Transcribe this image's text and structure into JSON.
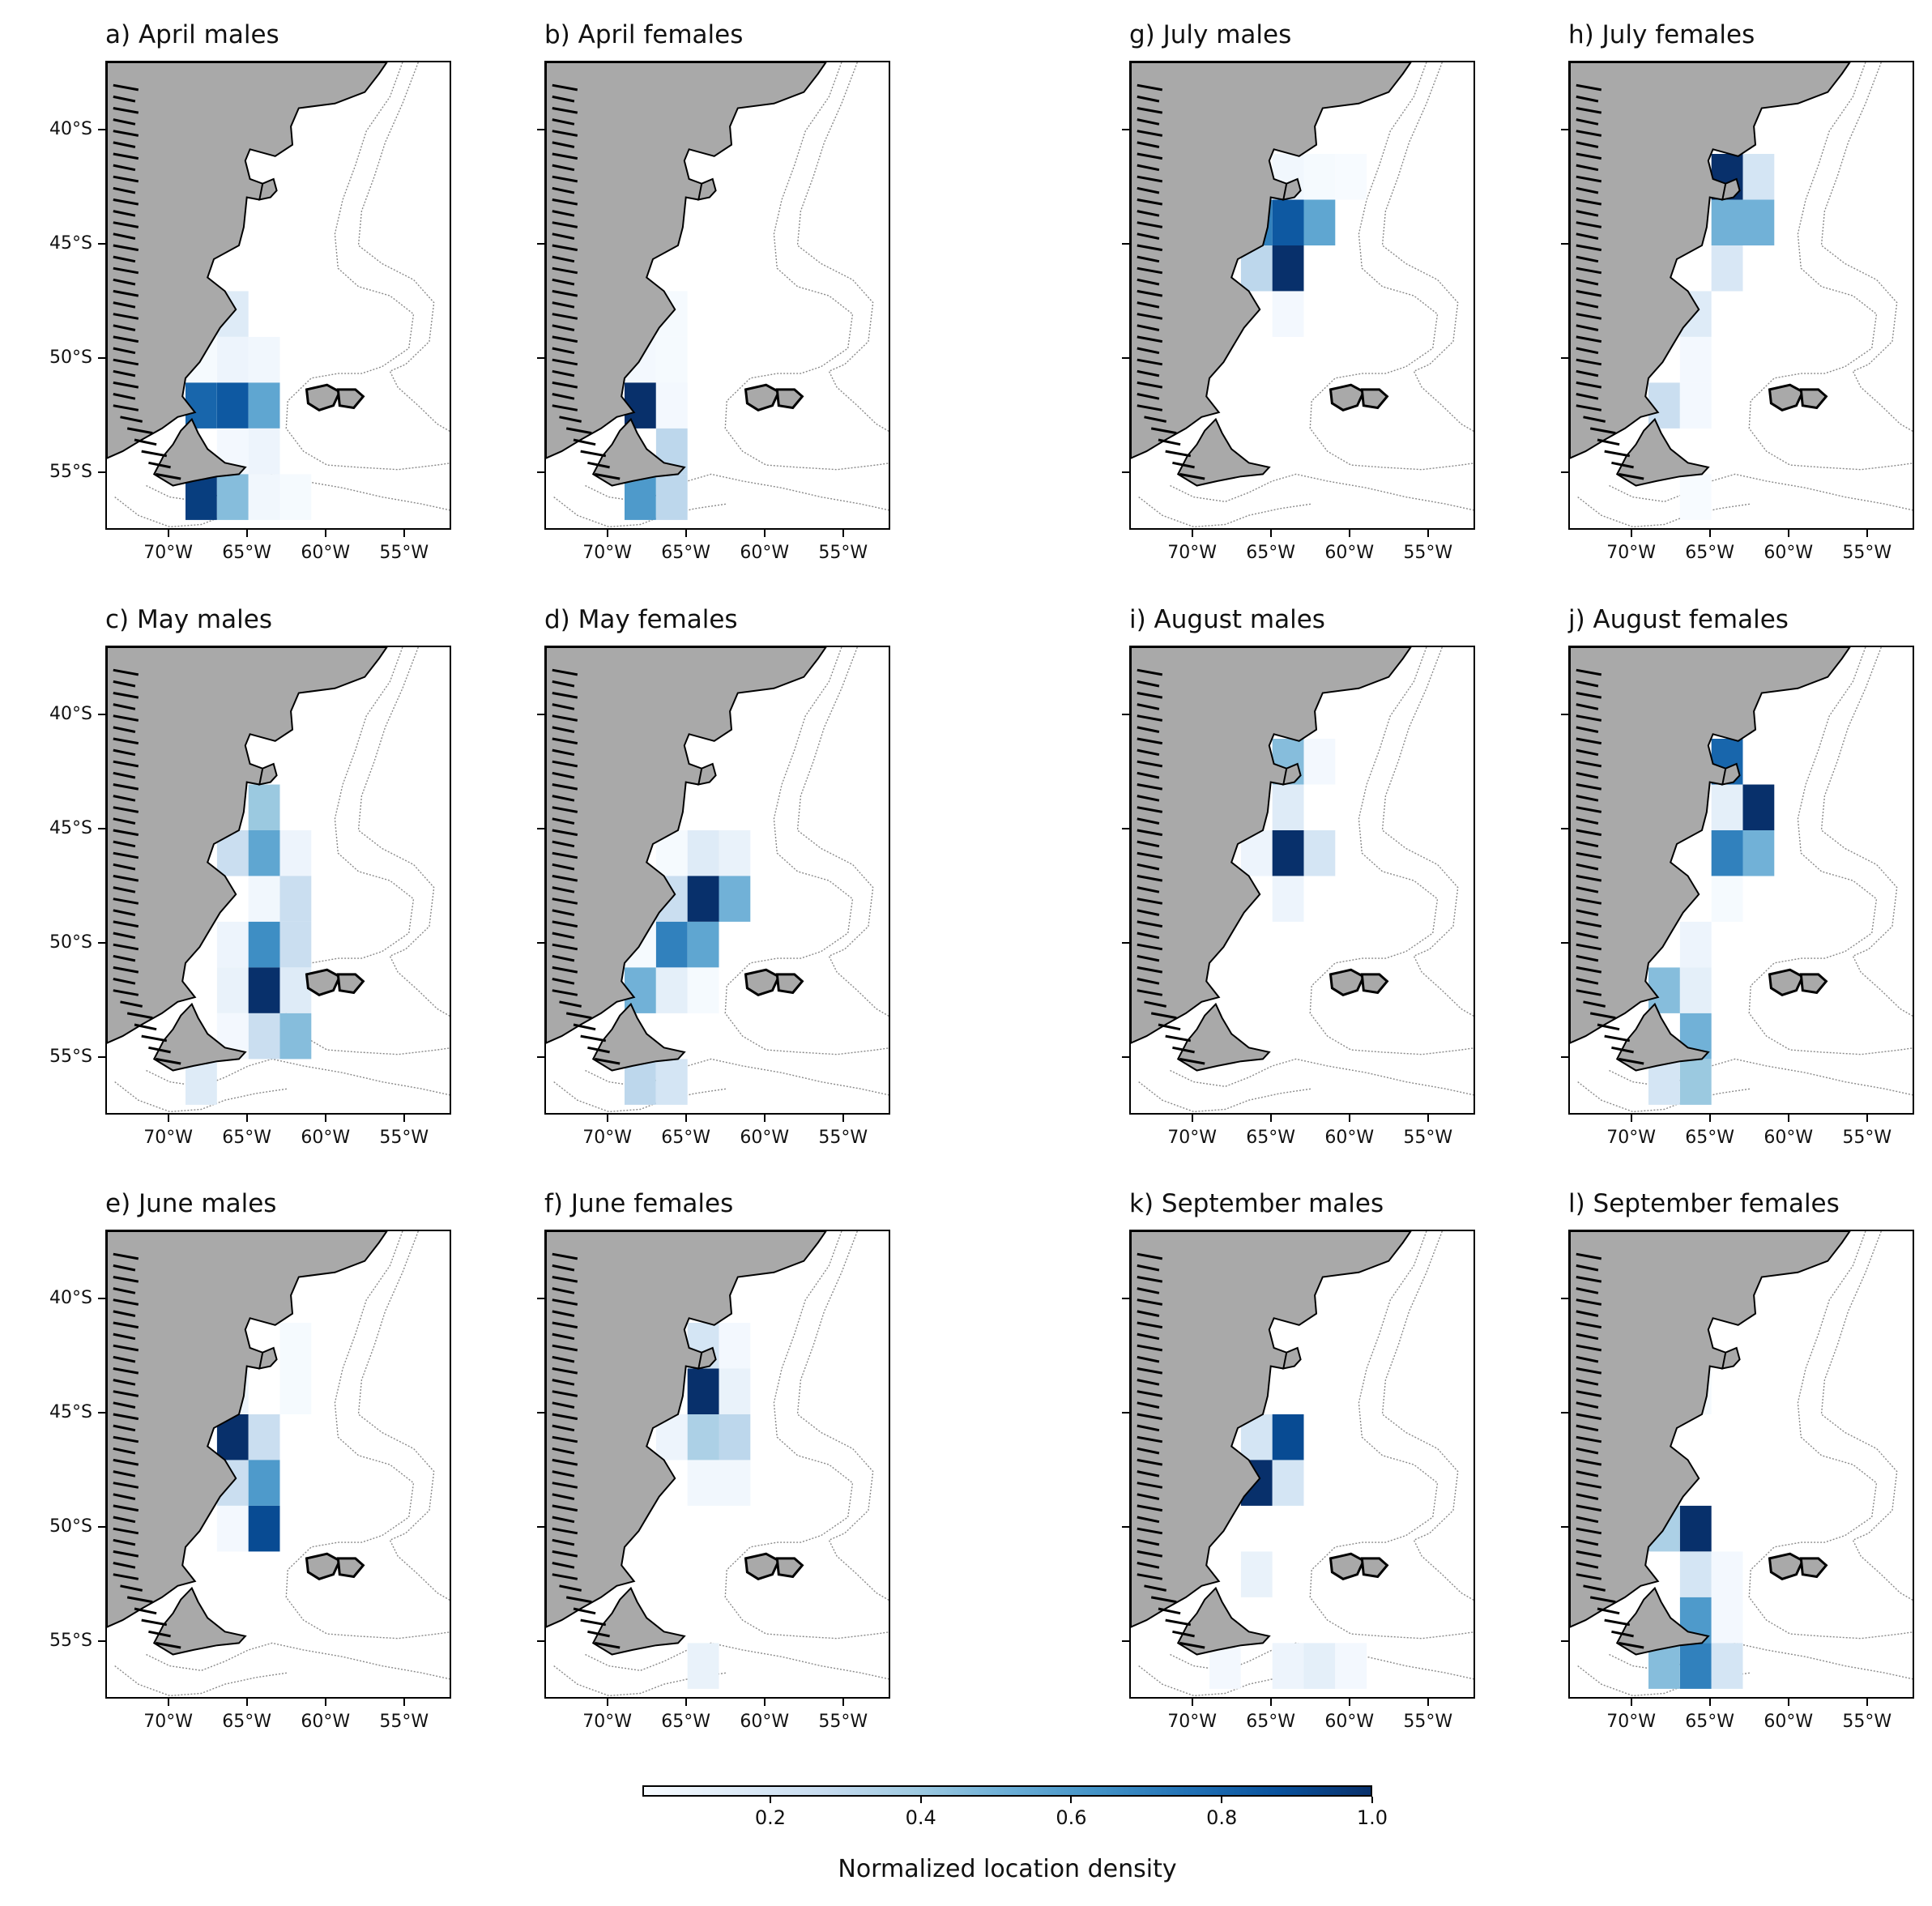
{
  "colors": {
    "land": "#a9a9a9",
    "coast": "#000000",
    "isobath": "#8a8a8a",
    "colormap": [
      "#f7fbff",
      "#deebf7",
      "#c6dbef",
      "#9ecae1",
      "#6baed6",
      "#4292c6",
      "#2171b5",
      "#08519c",
      "#08306b"
    ]
  },
  "chart_data": {
    "type": "heatmap",
    "description_free": true,
    "x_range": [
      -74,
      -52
    ],
    "y_range": [
      -57.5,
      -37
    ],
    "cell_size_deg": 2,
    "xticks": [
      {
        "value": -70,
        "label": "70°W"
      },
      {
        "value": -65,
        "label": "65°W"
      },
      {
        "value": -60,
        "label": "60°W"
      },
      {
        "value": -55,
        "label": "55°W"
      }
    ],
    "yticks": [
      {
        "value": -40,
        "label": "40°S"
      },
      {
        "value": -45,
        "label": "45°S"
      },
      {
        "value": -50,
        "label": "50°S"
      },
      {
        "value": -55,
        "label": "55°S"
      }
    ],
    "colorbar": {
      "label": "Normalized location density",
      "range": [
        0.03,
        1.0
      ],
      "ticks": [
        {
          "value": 0.2,
          "label": "0.2"
        },
        {
          "value": 0.4,
          "label": "0.4"
        },
        {
          "value": 0.6,
          "label": "0.6"
        },
        {
          "value": 0.8,
          "label": "0.8"
        },
        {
          "value": 1.0,
          "label": "1.0"
        }
      ]
    },
    "panels": [
      {
        "id": "a",
        "title": "a) April males",
        "cells": [
          {
            "lon": -66,
            "lat": -48,
            "v": 0.15
          },
          {
            "lon": -66,
            "lat": -50,
            "v": 0.08
          },
          {
            "lon": -68,
            "lat": -50,
            "v": 0.04
          },
          {
            "lon": -64,
            "lat": -50,
            "v": 0.06
          },
          {
            "lon": -68,
            "lat": -52,
            "v": 0.8
          },
          {
            "lon": -66,
            "lat": -52,
            "v": 0.85
          },
          {
            "lon": -64,
            "lat": -52,
            "v": 0.55
          },
          {
            "lon": -66,
            "lat": -54,
            "v": 0.05
          },
          {
            "lon": -64,
            "lat": -54,
            "v": 0.08
          },
          {
            "lon": -68,
            "lat": -56,
            "v": 0.95
          },
          {
            "lon": -66,
            "lat": -56,
            "v": 0.45
          },
          {
            "lon": -64,
            "lat": -56,
            "v": 0.06
          },
          {
            "lon": -62,
            "lat": -56,
            "v": 0.04
          }
        ]
      },
      {
        "id": "b",
        "title": "b) April females",
        "cells": [
          {
            "lon": -66,
            "lat": -48,
            "v": 0.04
          },
          {
            "lon": -68,
            "lat": -50,
            "v": 0.05
          },
          {
            "lon": -66,
            "lat": -50,
            "v": 0.04
          },
          {
            "lon": -68,
            "lat": -52,
            "v": 1.0
          },
          {
            "lon": -66,
            "lat": -52,
            "v": 0.05
          },
          {
            "lon": -66,
            "lat": -54,
            "v": 0.3
          },
          {
            "lon": -68,
            "lat": -56,
            "v": 0.6
          },
          {
            "lon": -66,
            "lat": -56,
            "v": 0.3
          }
        ]
      },
      {
        "id": "g",
        "title": "g) July males",
        "cells": [
          {
            "lon": -64,
            "lat": -42,
            "v": 0.06
          },
          {
            "lon": -62,
            "lat": -42,
            "v": 0.04
          },
          {
            "lon": -60,
            "lat": -42,
            "v": 0.03
          },
          {
            "lon": -66,
            "lat": -44,
            "v": 0.7
          },
          {
            "lon": -64,
            "lat": -44,
            "v": 0.85
          },
          {
            "lon": -62,
            "lat": -44,
            "v": 0.55
          },
          {
            "lon": -68,
            "lat": -44,
            "v": 0.6
          },
          {
            "lon": -66,
            "lat": -46,
            "v": 0.3
          },
          {
            "lon": -64,
            "lat": -46,
            "v": 1.0
          },
          {
            "lon": -64,
            "lat": -48,
            "v": 0.05
          }
        ]
      },
      {
        "id": "h",
        "title": "h) July females",
        "cells": [
          {
            "lon": -64,
            "lat": -42,
            "v": 1.0
          },
          {
            "lon": -62,
            "lat": -42,
            "v": 0.2
          },
          {
            "lon": -64,
            "lat": -44,
            "v": 0.5
          },
          {
            "lon": -62,
            "lat": -44,
            "v": 0.5
          },
          {
            "lon": -64,
            "lat": -46,
            "v": 0.18
          },
          {
            "lon": -66,
            "lat": -48,
            "v": 0.15
          },
          {
            "lon": -66,
            "lat": -50,
            "v": 0.05
          },
          {
            "lon": -68,
            "lat": -52,
            "v": 0.25
          },
          {
            "lon": -66,
            "lat": -52,
            "v": 0.05
          },
          {
            "lon": -66,
            "lat": -56,
            "v": 0.03
          }
        ]
      },
      {
        "id": "c",
        "title": "c) May males",
        "cells": [
          {
            "lon": -64,
            "lat": -44,
            "v": 0.4
          },
          {
            "lon": -66,
            "lat": -46,
            "v": 0.25
          },
          {
            "lon": -64,
            "lat": -46,
            "v": 0.55
          },
          {
            "lon": -62,
            "lat": -46,
            "v": 0.08
          },
          {
            "lon": -64,
            "lat": -48,
            "v": 0.06
          },
          {
            "lon": -62,
            "lat": -48,
            "v": 0.25
          },
          {
            "lon": -66,
            "lat": -50,
            "v": 0.08
          },
          {
            "lon": -64,
            "lat": -50,
            "v": 0.65
          },
          {
            "lon": -62,
            "lat": -50,
            "v": 0.25
          },
          {
            "lon": -66,
            "lat": -52,
            "v": 0.1
          },
          {
            "lon": -64,
            "lat": -52,
            "v": 1.0
          },
          {
            "lon": -62,
            "lat": -52,
            "v": 0.15
          },
          {
            "lon": -64,
            "lat": -54,
            "v": 0.25
          },
          {
            "lon": -62,
            "lat": -54,
            "v": 0.45
          },
          {
            "lon": -66,
            "lat": -54,
            "v": 0.05
          },
          {
            "lon": -68,
            "lat": -56,
            "v": 0.15
          }
        ]
      },
      {
        "id": "d",
        "title": "d) May females",
        "cells": [
          {
            "lon": -66,
            "lat": -46,
            "v": 0.04
          },
          {
            "lon": -64,
            "lat": -46,
            "v": 0.15
          },
          {
            "lon": -62,
            "lat": -46,
            "v": 0.1
          },
          {
            "lon": -66,
            "lat": -48,
            "v": 0.25
          },
          {
            "lon": -64,
            "lat": -48,
            "v": 1.0
          },
          {
            "lon": -62,
            "lat": -48,
            "v": 0.5
          },
          {
            "lon": -68,
            "lat": -50,
            "v": 0.04
          },
          {
            "lon": -66,
            "lat": -50,
            "v": 0.7
          },
          {
            "lon": -64,
            "lat": -50,
            "v": 0.55
          },
          {
            "lon": -68,
            "lat": -52,
            "v": 0.5
          },
          {
            "lon": -66,
            "lat": -52,
            "v": 0.12
          },
          {
            "lon": -64,
            "lat": -52,
            "v": 0.04
          },
          {
            "lon": -68,
            "lat": -56,
            "v": 0.3
          },
          {
            "lon": -66,
            "lat": -56,
            "v": 0.2
          }
        ]
      },
      {
        "id": "i",
        "title": "i) August males",
        "cells": [
          {
            "lon": -64,
            "lat": -42,
            "v": 0.45
          },
          {
            "lon": -62,
            "lat": -42,
            "v": 0.05
          },
          {
            "lon": -64,
            "lat": -44,
            "v": 0.15
          },
          {
            "lon": -66,
            "lat": -46,
            "v": 0.08
          },
          {
            "lon": -64,
            "lat": -46,
            "v": 1.0
          },
          {
            "lon": -62,
            "lat": -46,
            "v": 0.2
          },
          {
            "lon": -64,
            "lat": -48,
            "v": 0.08
          }
        ]
      },
      {
        "id": "j",
        "title": "j) August females",
        "cells": [
          {
            "lon": -64,
            "lat": -42,
            "v": 0.8
          },
          {
            "lon": -64,
            "lat": -44,
            "v": 0.12
          },
          {
            "lon": -62,
            "lat": -44,
            "v": 1.0
          },
          {
            "lon": -64,
            "lat": -46,
            "v": 0.7
          },
          {
            "lon": -62,
            "lat": -46,
            "v": 0.5
          },
          {
            "lon": -64,
            "lat": -48,
            "v": 0.04
          },
          {
            "lon": -66,
            "lat": -50,
            "v": 0.08
          },
          {
            "lon": -66,
            "lat": -52,
            "v": 0.12
          },
          {
            "lon": -68,
            "lat": -52,
            "v": 0.45
          },
          {
            "lon": -66,
            "lat": -54,
            "v": 0.5
          },
          {
            "lon": -68,
            "lat": -56,
            "v": 0.2
          },
          {
            "lon": -66,
            "lat": -56,
            "v": 0.4
          }
        ]
      },
      {
        "id": "e",
        "title": "e) June males",
        "cells": [
          {
            "lon": -62,
            "lat": -42,
            "v": 0.04
          },
          {
            "lon": -66,
            "lat": -44,
            "v": 0.08
          },
          {
            "lon": -62,
            "lat": -44,
            "v": 0.04
          },
          {
            "lon": -68,
            "lat": -44,
            "v": 0.35
          },
          {
            "lon": -66,
            "lat": -46,
            "v": 1.0
          },
          {
            "lon": -64,
            "lat": -46,
            "v": 0.25
          },
          {
            "lon": -66,
            "lat": -48,
            "v": 0.25
          },
          {
            "lon": -64,
            "lat": -48,
            "v": 0.6
          },
          {
            "lon": -66,
            "lat": -50,
            "v": 0.05
          },
          {
            "lon": -64,
            "lat": -50,
            "v": 0.9
          }
        ]
      },
      {
        "id": "f",
        "title": "f) June females",
        "cells": [
          {
            "lon": -64,
            "lat": -42,
            "v": 0.2
          },
          {
            "lon": -62,
            "lat": -42,
            "v": 0.05
          },
          {
            "lon": -64,
            "lat": -44,
            "v": 1.0
          },
          {
            "lon": -62,
            "lat": -44,
            "v": 0.1
          },
          {
            "lon": -66,
            "lat": -46,
            "v": 0.08
          },
          {
            "lon": -64,
            "lat": -46,
            "v": 0.35
          },
          {
            "lon": -62,
            "lat": -46,
            "v": 0.3
          },
          {
            "lon": -64,
            "lat": -48,
            "v": 0.06
          },
          {
            "lon": -62,
            "lat": -48,
            "v": 0.06
          },
          {
            "lon": -64,
            "lat": -56,
            "v": 0.1
          }
        ]
      },
      {
        "id": "k",
        "title": "k) September males",
        "cells": [
          {
            "lon": -66,
            "lat": -46,
            "v": 0.2
          },
          {
            "lon": -64,
            "lat": -46,
            "v": 0.9
          },
          {
            "lon": -66,
            "lat": -48,
            "v": 1.0
          },
          {
            "lon": -64,
            "lat": -48,
            "v": 0.2
          },
          {
            "lon": -66,
            "lat": -52,
            "v": 0.1
          },
          {
            "lon": -68,
            "lat": -56,
            "v": 0.05
          },
          {
            "lon": -64,
            "lat": -56,
            "v": 0.08
          },
          {
            "lon": -62,
            "lat": -56,
            "v": 0.12
          },
          {
            "lon": -60,
            "lat": -56,
            "v": 0.05
          }
        ]
      },
      {
        "id": "l",
        "title": "l) September females",
        "cells": [
          {
            "lon": -66,
            "lat": -44,
            "v": 0.04
          },
          {
            "lon": -68,
            "lat": -50,
            "v": 0.35
          },
          {
            "lon": -66,
            "lat": -50,
            "v": 1.0
          },
          {
            "lon": -66,
            "lat": -52,
            "v": 0.2
          },
          {
            "lon": -64,
            "lat": -52,
            "v": 0.05
          },
          {
            "lon": -66,
            "lat": -54,
            "v": 0.6
          },
          {
            "lon": -64,
            "lat": -54,
            "v": 0.05
          },
          {
            "lon": -68,
            "lat": -56,
            "v": 0.45
          },
          {
            "lon": -66,
            "lat": -56,
            "v": 0.7
          },
          {
            "lon": -64,
            "lat": -56,
            "v": 0.2
          }
        ]
      }
    ]
  }
}
